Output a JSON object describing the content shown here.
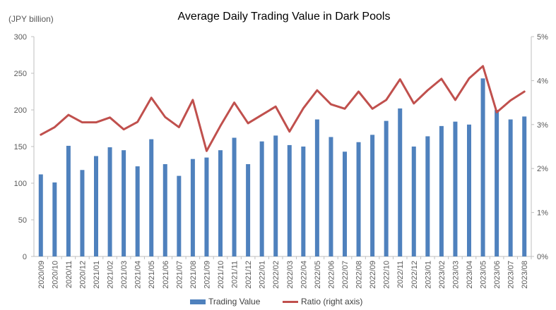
{
  "chart_data": {
    "type": "bar",
    "title": "Average Daily Trading Value in Dark Pools",
    "y_unit_label": "(JPY billion)",
    "categories": [
      "2020/09",
      "2020/10",
      "2020/11",
      "2020/12",
      "2021/01",
      "2021/02",
      "2021/03",
      "2021/04",
      "2021/05",
      "2021/06",
      "2021/07",
      "2021/08",
      "2021/09",
      "2021/10",
      "2021/11",
      "2021/12",
      "2022/01",
      "2022/02",
      "2022/03",
      "2022/04",
      "2022/05",
      "2022/06",
      "2022/07",
      "2022/08",
      "2022/09",
      "2022/10",
      "2022/11",
      "2022/12",
      "2023/01",
      "2023/02",
      "2023/03",
      "2023/04",
      "2023/05",
      "2023/06",
      "2023/07",
      "2023/08"
    ],
    "series": [
      {
        "name": "Trading Value",
        "type": "bar",
        "axis": "left",
        "color": "#4F81BD",
        "values": [
          112,
          101,
          151,
          118,
          137,
          149,
          145,
          123,
          160,
          126,
          110,
          133,
          135,
          145,
          162,
          126,
          157,
          165,
          152,
          150,
          187,
          163,
          143,
          156,
          166,
          185,
          202,
          150,
          164,
          178,
          184,
          180,
          243,
          200,
          187,
          191
        ]
      },
      {
        "name": "Ratio (right axis)",
        "type": "line",
        "axis": "right",
        "color": "#C0504D",
        "values": [
          2.77,
          2.94,
          3.22,
          3.05,
          3.05,
          3.16,
          2.89,
          3.06,
          3.61,
          3.17,
          2.94,
          3.56,
          2.4,
          2.97,
          3.5,
          3.03,
          3.22,
          3.41,
          2.84,
          3.37,
          3.78,
          3.46,
          3.36,
          3.75,
          3.36,
          3.56,
          4.03,
          3.48,
          3.78,
          4.04,
          3.56,
          4.05,
          4.33,
          3.28,
          3.55,
          3.75
        ]
      }
    ],
    "y_left": {
      "min": 0,
      "max": 300,
      "step": 50,
      "tick_labels": [
        "0",
        "50",
        "100",
        "150",
        "200",
        "250",
        "300"
      ]
    },
    "y_right": {
      "min": 0,
      "max": 5,
      "step": 1,
      "tick_labels": [
        "0%",
        "1%",
        "2%",
        "3%",
        "4%",
        "5%"
      ]
    },
    "grid": false,
    "legend_position": "bottom"
  }
}
